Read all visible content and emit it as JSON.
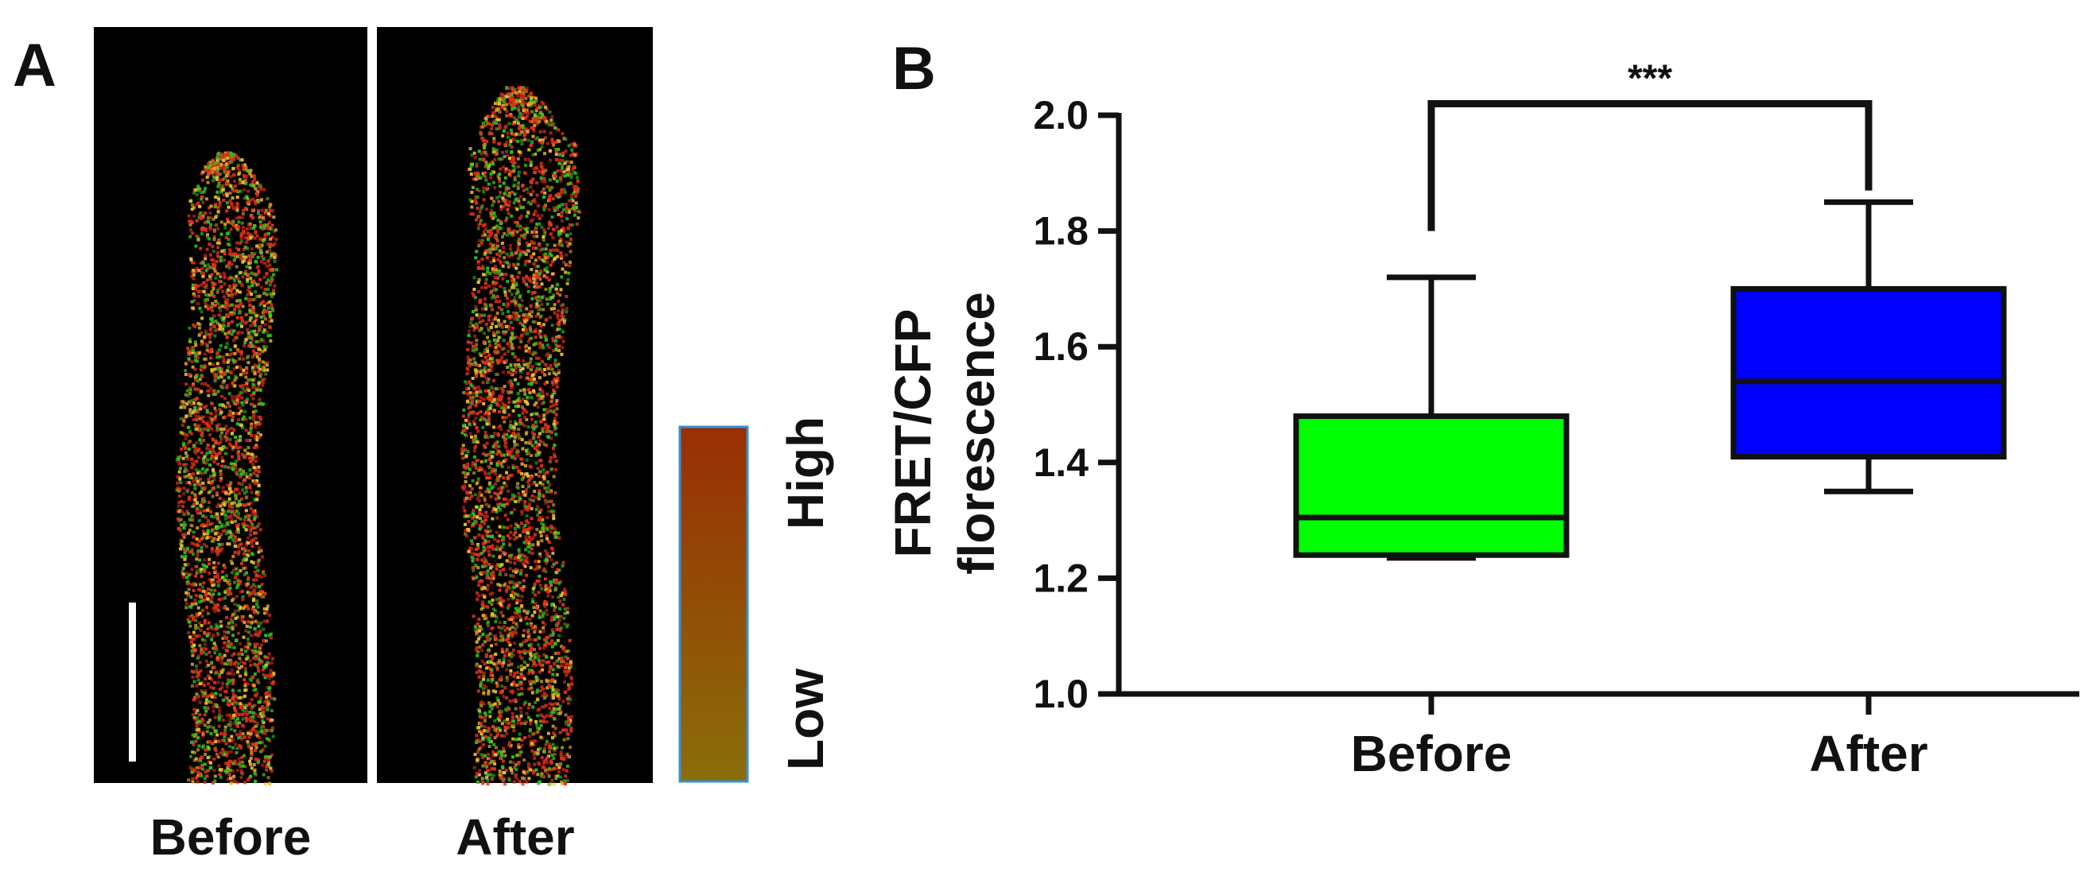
{
  "panel_a": {
    "label": "A",
    "images": [
      {
        "label": "Before"
      },
      {
        "label": "After"
      }
    ],
    "colorbar": {
      "high_label": "High",
      "low_label": "Low",
      "colors": {
        "top": "#9a2e05",
        "bottom": "#8a6e08",
        "border": "#3a8fd0"
      }
    },
    "image_colors": {
      "background": "#000000",
      "signal_red": "#e0301a",
      "signal_green": "#2ec020",
      "signal_yellow": "#e8c030"
    }
  },
  "panel_b": {
    "label": "B"
  },
  "chart_data": {
    "type": "box",
    "title": "",
    "xlabel": "",
    "ylabel_line1": "FRET/CFP",
    "ylabel_line2": "florescence",
    "ylim": [
      1.0,
      2.0
    ],
    "yticks": [
      "1.0",
      "1.2",
      "1.4",
      "1.6",
      "1.8",
      "2.0"
    ],
    "categories": [
      "Before",
      "After"
    ],
    "series": [
      {
        "name": "Before",
        "color": "#00ff00",
        "min": 1.235,
        "q1": 1.24,
        "median": 1.305,
        "q3": 1.48,
        "max": 1.72
      },
      {
        "name": "After",
        "color": "#0000ff",
        "min": 1.35,
        "q1": 1.41,
        "median": 1.54,
        "q3": 1.7,
        "max": 1.85
      }
    ],
    "significance": {
      "label": "***",
      "bracket_y": 2.02,
      "left_end_y": 1.8,
      "right_end_y": 1.87
    }
  }
}
